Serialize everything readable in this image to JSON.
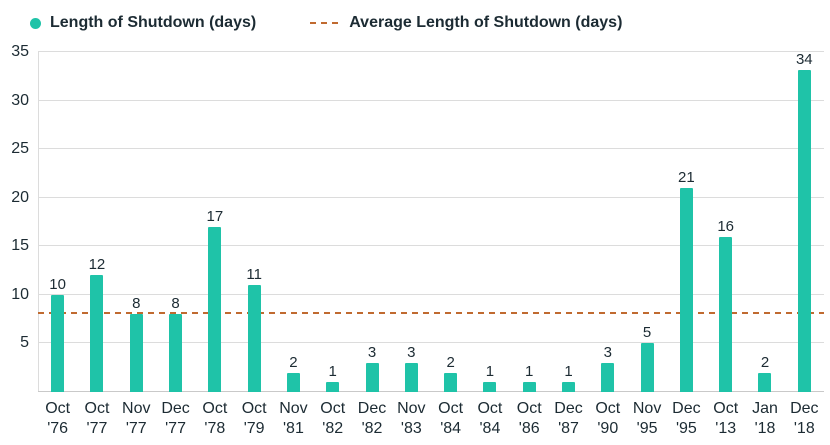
{
  "legend": {
    "series1": "Length of Shutdown (days)",
    "series2": "Average Length of Shutdown (days)"
  },
  "colors": {
    "bar": "#1FC3A8",
    "average_line": "#C06A30",
    "text": "#1C2B33",
    "grid": "#DCDCDC"
  },
  "chart_data": {
    "type": "bar",
    "title": "",
    "xlabel": "",
    "ylabel": "",
    "categories": [
      {
        "month": "Oct",
        "year": "'76"
      },
      {
        "month": "Oct",
        "year": "'77"
      },
      {
        "month": "Nov",
        "year": "'77"
      },
      {
        "month": "Dec",
        "year": "'77"
      },
      {
        "month": "Oct",
        "year": "'78"
      },
      {
        "month": "Oct",
        "year": "'79"
      },
      {
        "month": "Nov",
        "year": "'81"
      },
      {
        "month": "Oct",
        "year": "'82"
      },
      {
        "month": "Dec",
        "year": "'82"
      },
      {
        "month": "Nov",
        "year": "'83"
      },
      {
        "month": "Oct",
        "year": "'84"
      },
      {
        "month": "Oct",
        "year": "'84"
      },
      {
        "month": "Oct",
        "year": "'86"
      },
      {
        "month": "Dec",
        "year": "'87"
      },
      {
        "month": "Oct",
        "year": "'90"
      },
      {
        "month": "Nov",
        "year": "'95"
      },
      {
        "month": "Dec",
        "year": "'95"
      },
      {
        "month": "Oct",
        "year": "'13"
      },
      {
        "month": "Jan",
        "year": "'18"
      },
      {
        "month": "Dec",
        "year": "'18"
      }
    ],
    "values": [
      10,
      12,
      8,
      8,
      17,
      11,
      2,
      1,
      3,
      3,
      2,
      1,
      1,
      1,
      3,
      5,
      21,
      16,
      2,
      34
    ],
    "average": 8.05,
    "yticks": [
      5,
      10,
      15,
      20,
      25,
      30,
      35
    ],
    "ylim": [
      0,
      35
    ],
    "grid": "horizontal",
    "legend_position": "top"
  }
}
